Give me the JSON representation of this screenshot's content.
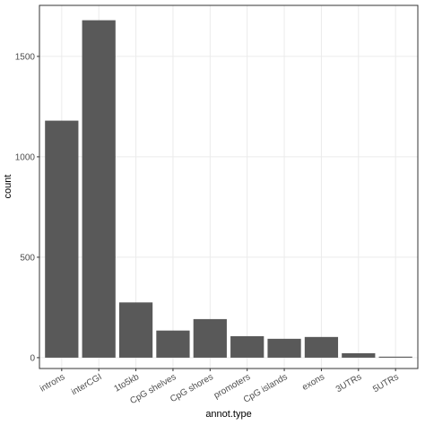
{
  "chart_data": {
    "type": "bar",
    "x_label": "annot.type",
    "y_label": "count",
    "categories": [
      "introns",
      "interCGI",
      "1to5kb",
      "CpG shelves",
      "CpG shores",
      "promoters",
      "CpG islands",
      "exons",
      "3UTRs",
      "5UTRs"
    ],
    "values": [
      1180,
      1680,
      275,
      135,
      192,
      107,
      94,
      103,
      22,
      5
    ],
    "color": "#595959",
    "ylim": [
      -54,
      1754
    ],
    "yticks": [
      0,
      500,
      1000,
      1500
    ],
    "grid": true
  }
}
